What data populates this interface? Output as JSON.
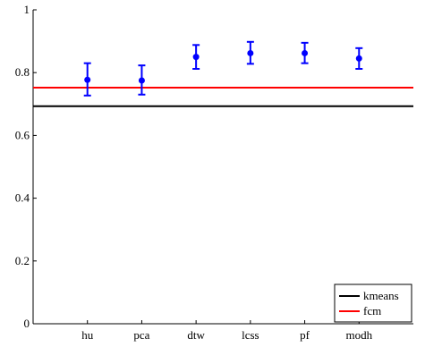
{
  "chart_data": {
    "type": "scatter",
    "categories": [
      "hu",
      "pca",
      "dtw",
      "lcss",
      "pf",
      "modh"
    ],
    "values": [
      0.777,
      0.775,
      0.85,
      0.862,
      0.862,
      0.845
    ],
    "errors": {
      "lower": [
        0.727,
        0.73,
        0.812,
        0.828,
        0.83,
        0.812
      ],
      "upper": [
        0.83,
        0.823,
        0.888,
        0.898,
        0.895,
        0.878
      ]
    },
    "reference_lines": [
      {
        "name": "kmeans",
        "value": 0.693,
        "color": "#000000"
      },
      {
        "name": "fcm",
        "value": 0.752,
        "color": "#ff0000"
      }
    ],
    "ylim": [
      0,
      1
    ],
    "yticks": [
      "0",
      "0.2",
      "0.4",
      "0.6",
      "0.8",
      "1"
    ],
    "point_color": "#0000ff",
    "grid": false,
    "legend_position": "bottom-right",
    "title": "",
    "xlabel": "",
    "ylabel": ""
  }
}
